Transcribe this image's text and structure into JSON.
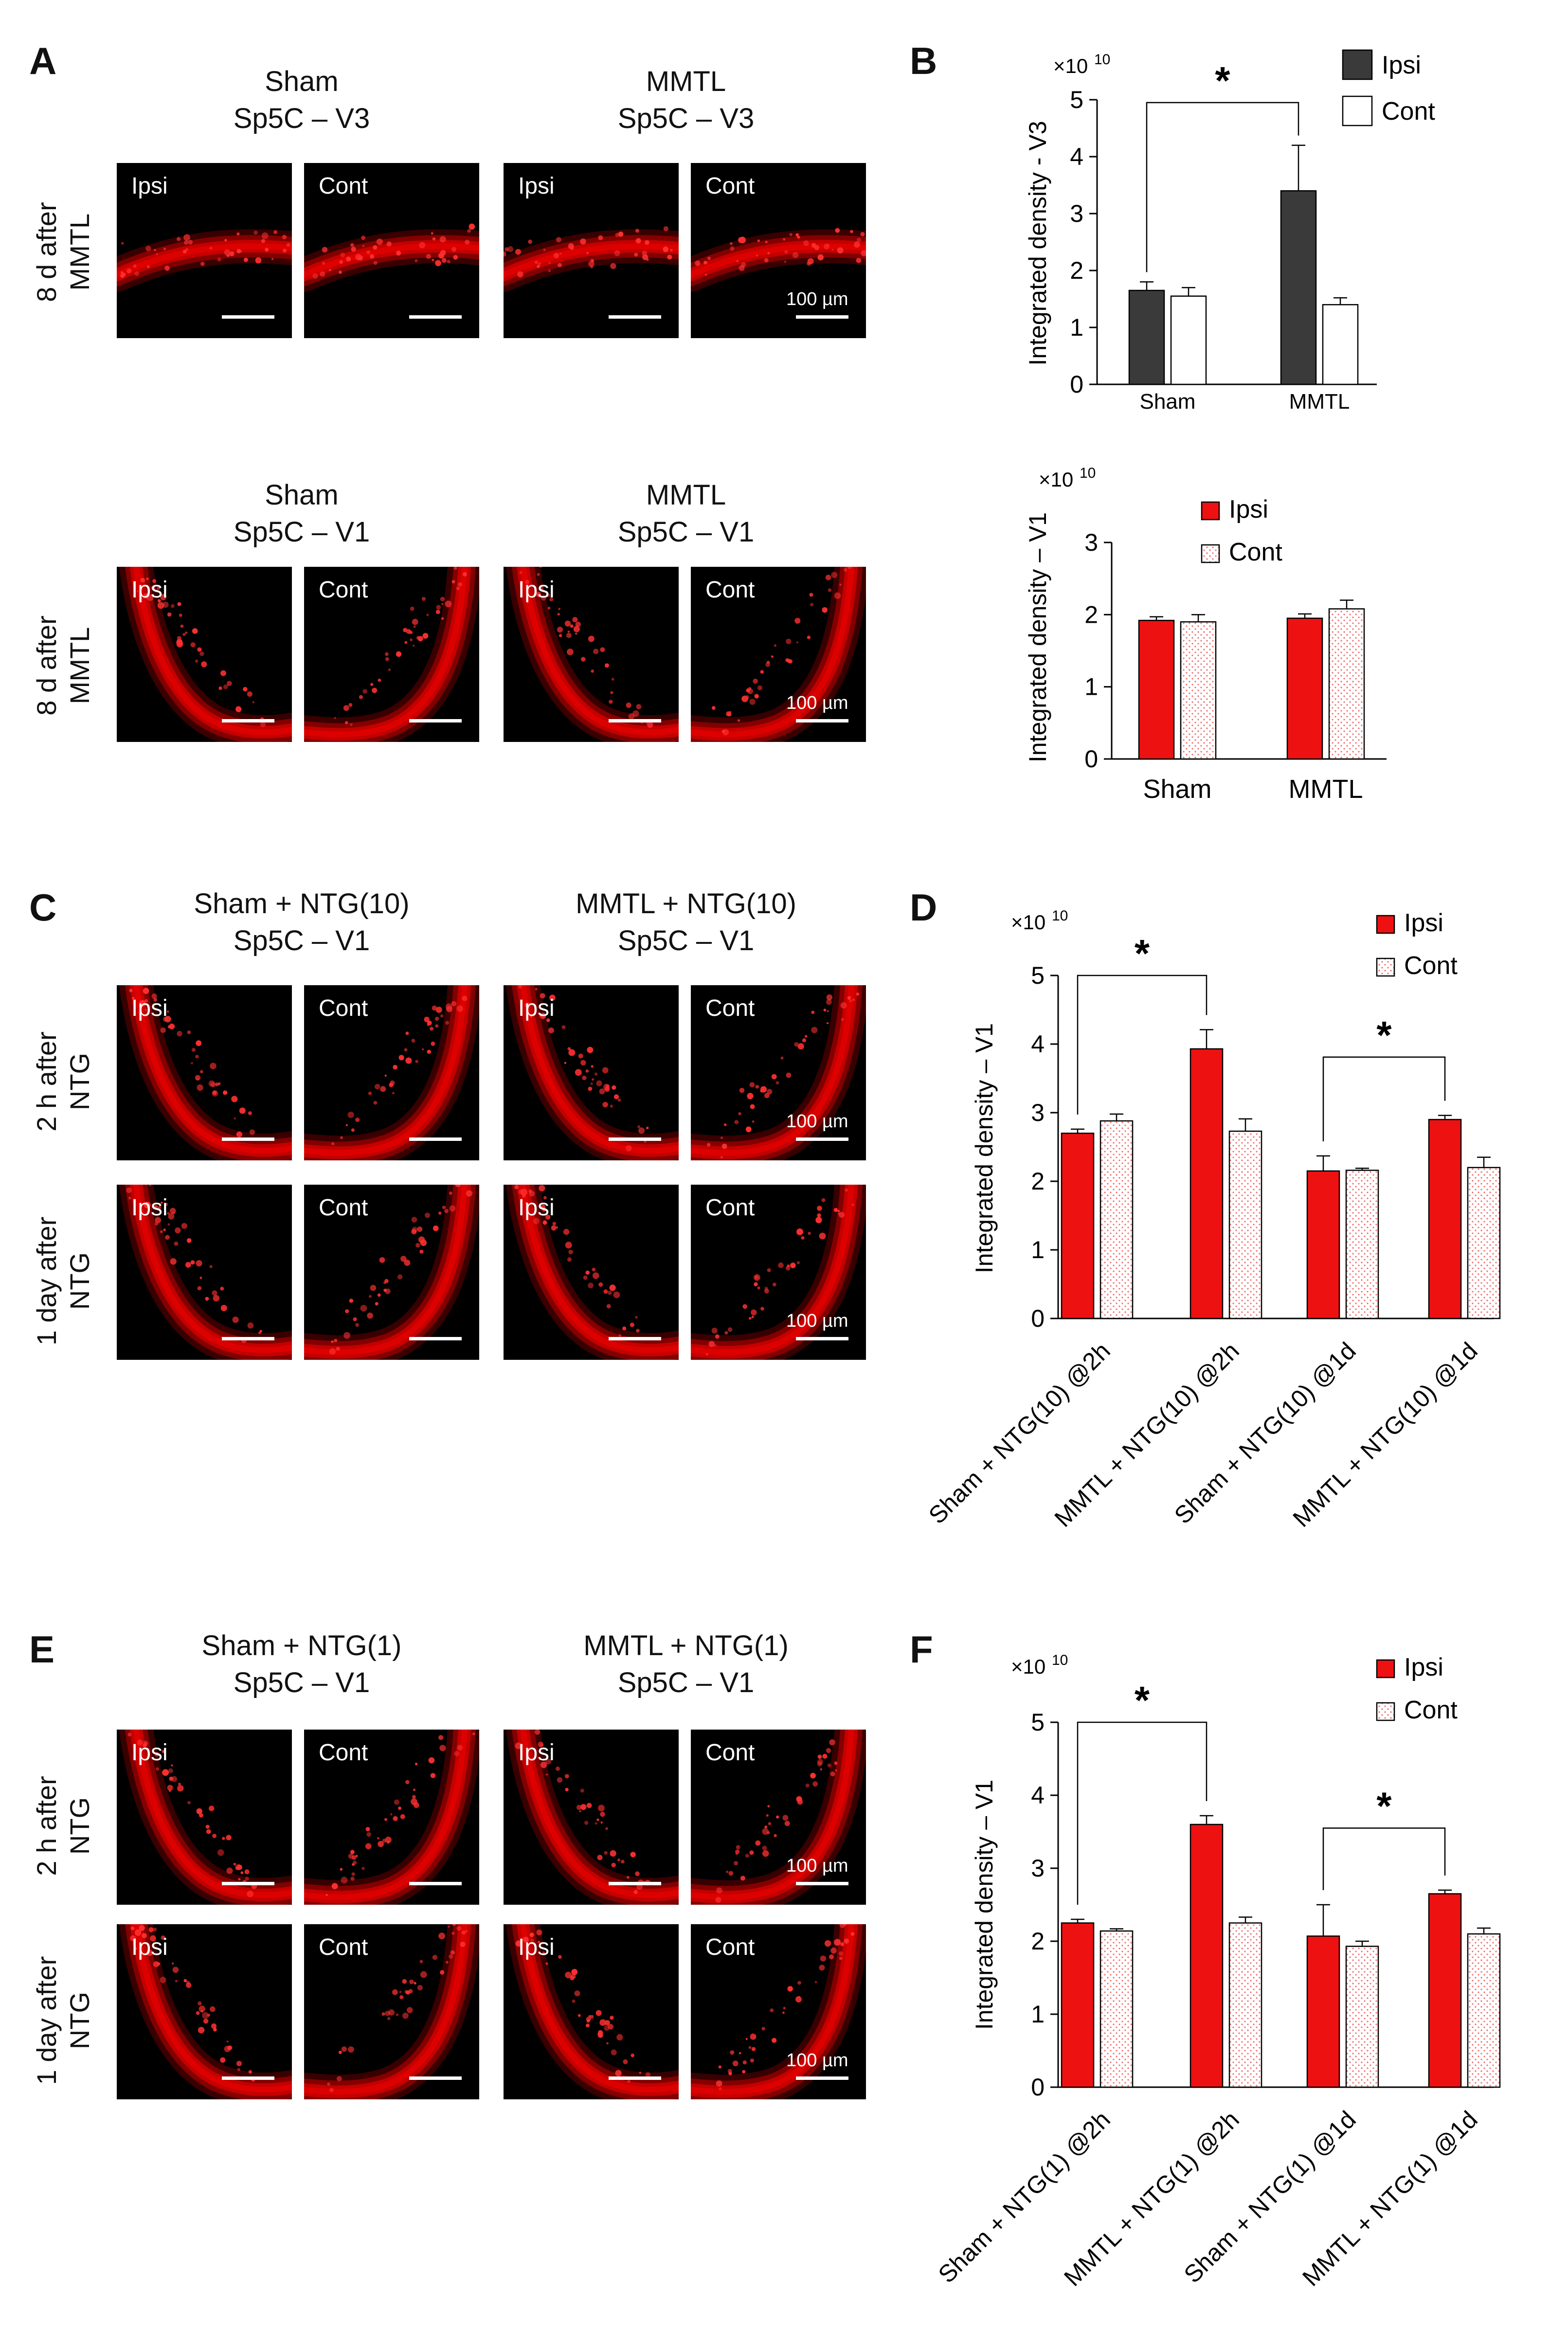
{
  "panel_labels": [
    "A",
    "B",
    "C",
    "D",
    "E",
    "F"
  ],
  "colors": {
    "ipsi_dark": "#3a3a3a",
    "ipsi_red": "#ee1111",
    "cont_fill": "#ffffff",
    "tissue": "#e00000"
  },
  "panel_a": {
    "top": {
      "row_label_line1": "8 d after",
      "row_label_line2": "MMTL",
      "group1_line1": "Sham",
      "group1_line2": "Sp5C – V3",
      "group2_line1": "MMTL",
      "group2_line2": "Sp5C – V3",
      "tile_labels": [
        "Ipsi",
        "Cont",
        "Ipsi",
        "Cont"
      ],
      "scale_label": "100 µm"
    },
    "bottom": {
      "row_label_line1": "8 d after",
      "row_label_line2": "MMTL",
      "group1_line1": "Sham",
      "group1_line2": "Sp5C – V1",
      "group2_line1": "MMTL",
      "group2_line2": "Sp5C – V1",
      "tile_labels": [
        "Ipsi",
        "Cont",
        "Ipsi",
        "Cont"
      ],
      "scale_label": "100 µm"
    }
  },
  "panel_c": {
    "group1_line1": "Sham + NTG(10)",
    "group1_line2": "Sp5C – V1",
    "group2_line1": "MMTL + NTG(10)",
    "group2_line2": "Sp5C – V1",
    "row1_line1": "2 h after",
    "row1_line2": "NTG",
    "row2_line1": "1 day after",
    "row2_line2": "NTG",
    "tile_labels": [
      "Ipsi",
      "Cont",
      "Ipsi",
      "Cont"
    ],
    "scale_label": "100 µm"
  },
  "panel_e": {
    "group1_line1": "Sham + NTG(1)",
    "group1_line2": "Sp5C – V1",
    "group2_line1": "MMTL + NTG(1)",
    "group2_line2": "Sp5C – V1",
    "row1_line1": "2 h after",
    "row1_line2": "NTG",
    "row2_line1": "1 day after",
    "row2_line2": "NTG",
    "tile_labels": [
      "Ipsi",
      "Cont",
      "Ipsi",
      "Cont"
    ],
    "scale_label": "100 µm"
  },
  "chart_data": [
    {
      "id": "B-top",
      "type": "bar",
      "ylabel": "Integrated density - V3",
      "multiplier": "×10",
      "multiplier_exp": "10",
      "categories": [
        "Sham",
        "MMTL"
      ],
      "series": [
        {
          "name": "Ipsi",
          "values": [
            1.65,
            3.4
          ],
          "errors": [
            0.15,
            0.8
          ]
        },
        {
          "name": "Cont",
          "values": [
            1.55,
            1.4
          ],
          "errors": [
            0.15,
            0.12
          ]
        }
      ],
      "ylim": [
        0,
        5
      ],
      "yticks": [
        0,
        1,
        2,
        3,
        4,
        5
      ],
      "legend": "top-right",
      "significance": [
        {
          "label": "*",
          "from": "Sham Ipsi",
          "to": "MMTL Ipsi"
        }
      ]
    },
    {
      "id": "B-bottom",
      "type": "bar",
      "ylabel": "Integrated density – V1",
      "multiplier": "×10",
      "multiplier_exp": "10",
      "categories": [
        "Sham",
        "MMTL"
      ],
      "series": [
        {
          "name": "Ipsi",
          "values": [
            1.92,
            1.95
          ],
          "errors": [
            0.05,
            0.06
          ]
        },
        {
          "name": "Cont",
          "values": [
            1.9,
            2.08
          ],
          "errors": [
            0.1,
            0.12
          ]
        }
      ],
      "ylim": [
        0,
        3
      ],
      "yticks": [
        0,
        1,
        2,
        3
      ],
      "legend": "top-right"
    },
    {
      "id": "D",
      "type": "bar",
      "ylabel": "Integrated density – V1",
      "multiplier": "×10",
      "multiplier_exp": "10",
      "categories": [
        "Sham + NTG(10) @2h",
        "MMTL + NTG(10) @2h",
        "Sham + NTG(10) @1d",
        "MMTL + NTG(10) @1d"
      ],
      "series": [
        {
          "name": "Ipsi",
          "values": [
            2.7,
            3.93,
            2.15,
            2.9
          ],
          "errors": [
            0.06,
            0.28,
            0.22,
            0.06
          ]
        },
        {
          "name": "Cont",
          "values": [
            2.88,
            2.73,
            2.16,
            2.2
          ],
          "errors": [
            0.1,
            0.18,
            0.03,
            0.15
          ]
        }
      ],
      "ylim": [
        0,
        5
      ],
      "yticks": [
        0,
        1,
        2,
        3,
        4,
        5
      ],
      "legend": "top-right",
      "significance": [
        {
          "label": "*",
          "from": 0,
          "to": 1
        },
        {
          "label": "*",
          "from": 2,
          "to": 3
        }
      ]
    },
    {
      "id": "F",
      "type": "bar",
      "ylabel": "Integrated density – V1",
      "multiplier": "×10",
      "multiplier_exp": "10",
      "categories": [
        "Sham + NTG(1) @2h",
        "MMTL + NTG(1) @2h",
        "Sham + NTG(1) @1d",
        "MMTL + NTG(1) @1d"
      ],
      "series": [
        {
          "name": "Ipsi",
          "values": [
            2.25,
            3.6,
            2.07,
            2.65
          ],
          "errors": [
            0.05,
            0.12,
            0.43,
            0.05
          ]
        },
        {
          "name": "Cont",
          "values": [
            2.14,
            2.25,
            1.93,
            2.1
          ],
          "errors": [
            0.03,
            0.08,
            0.07,
            0.08
          ]
        }
      ],
      "ylim": [
        0,
        5
      ],
      "yticks": [
        0,
        1,
        2,
        3,
        4,
        5
      ],
      "legend": "top-right",
      "significance": [
        {
          "label": "*",
          "from": 0,
          "to": 1
        },
        {
          "label": "*",
          "from": 2,
          "to": 3
        }
      ]
    }
  ]
}
